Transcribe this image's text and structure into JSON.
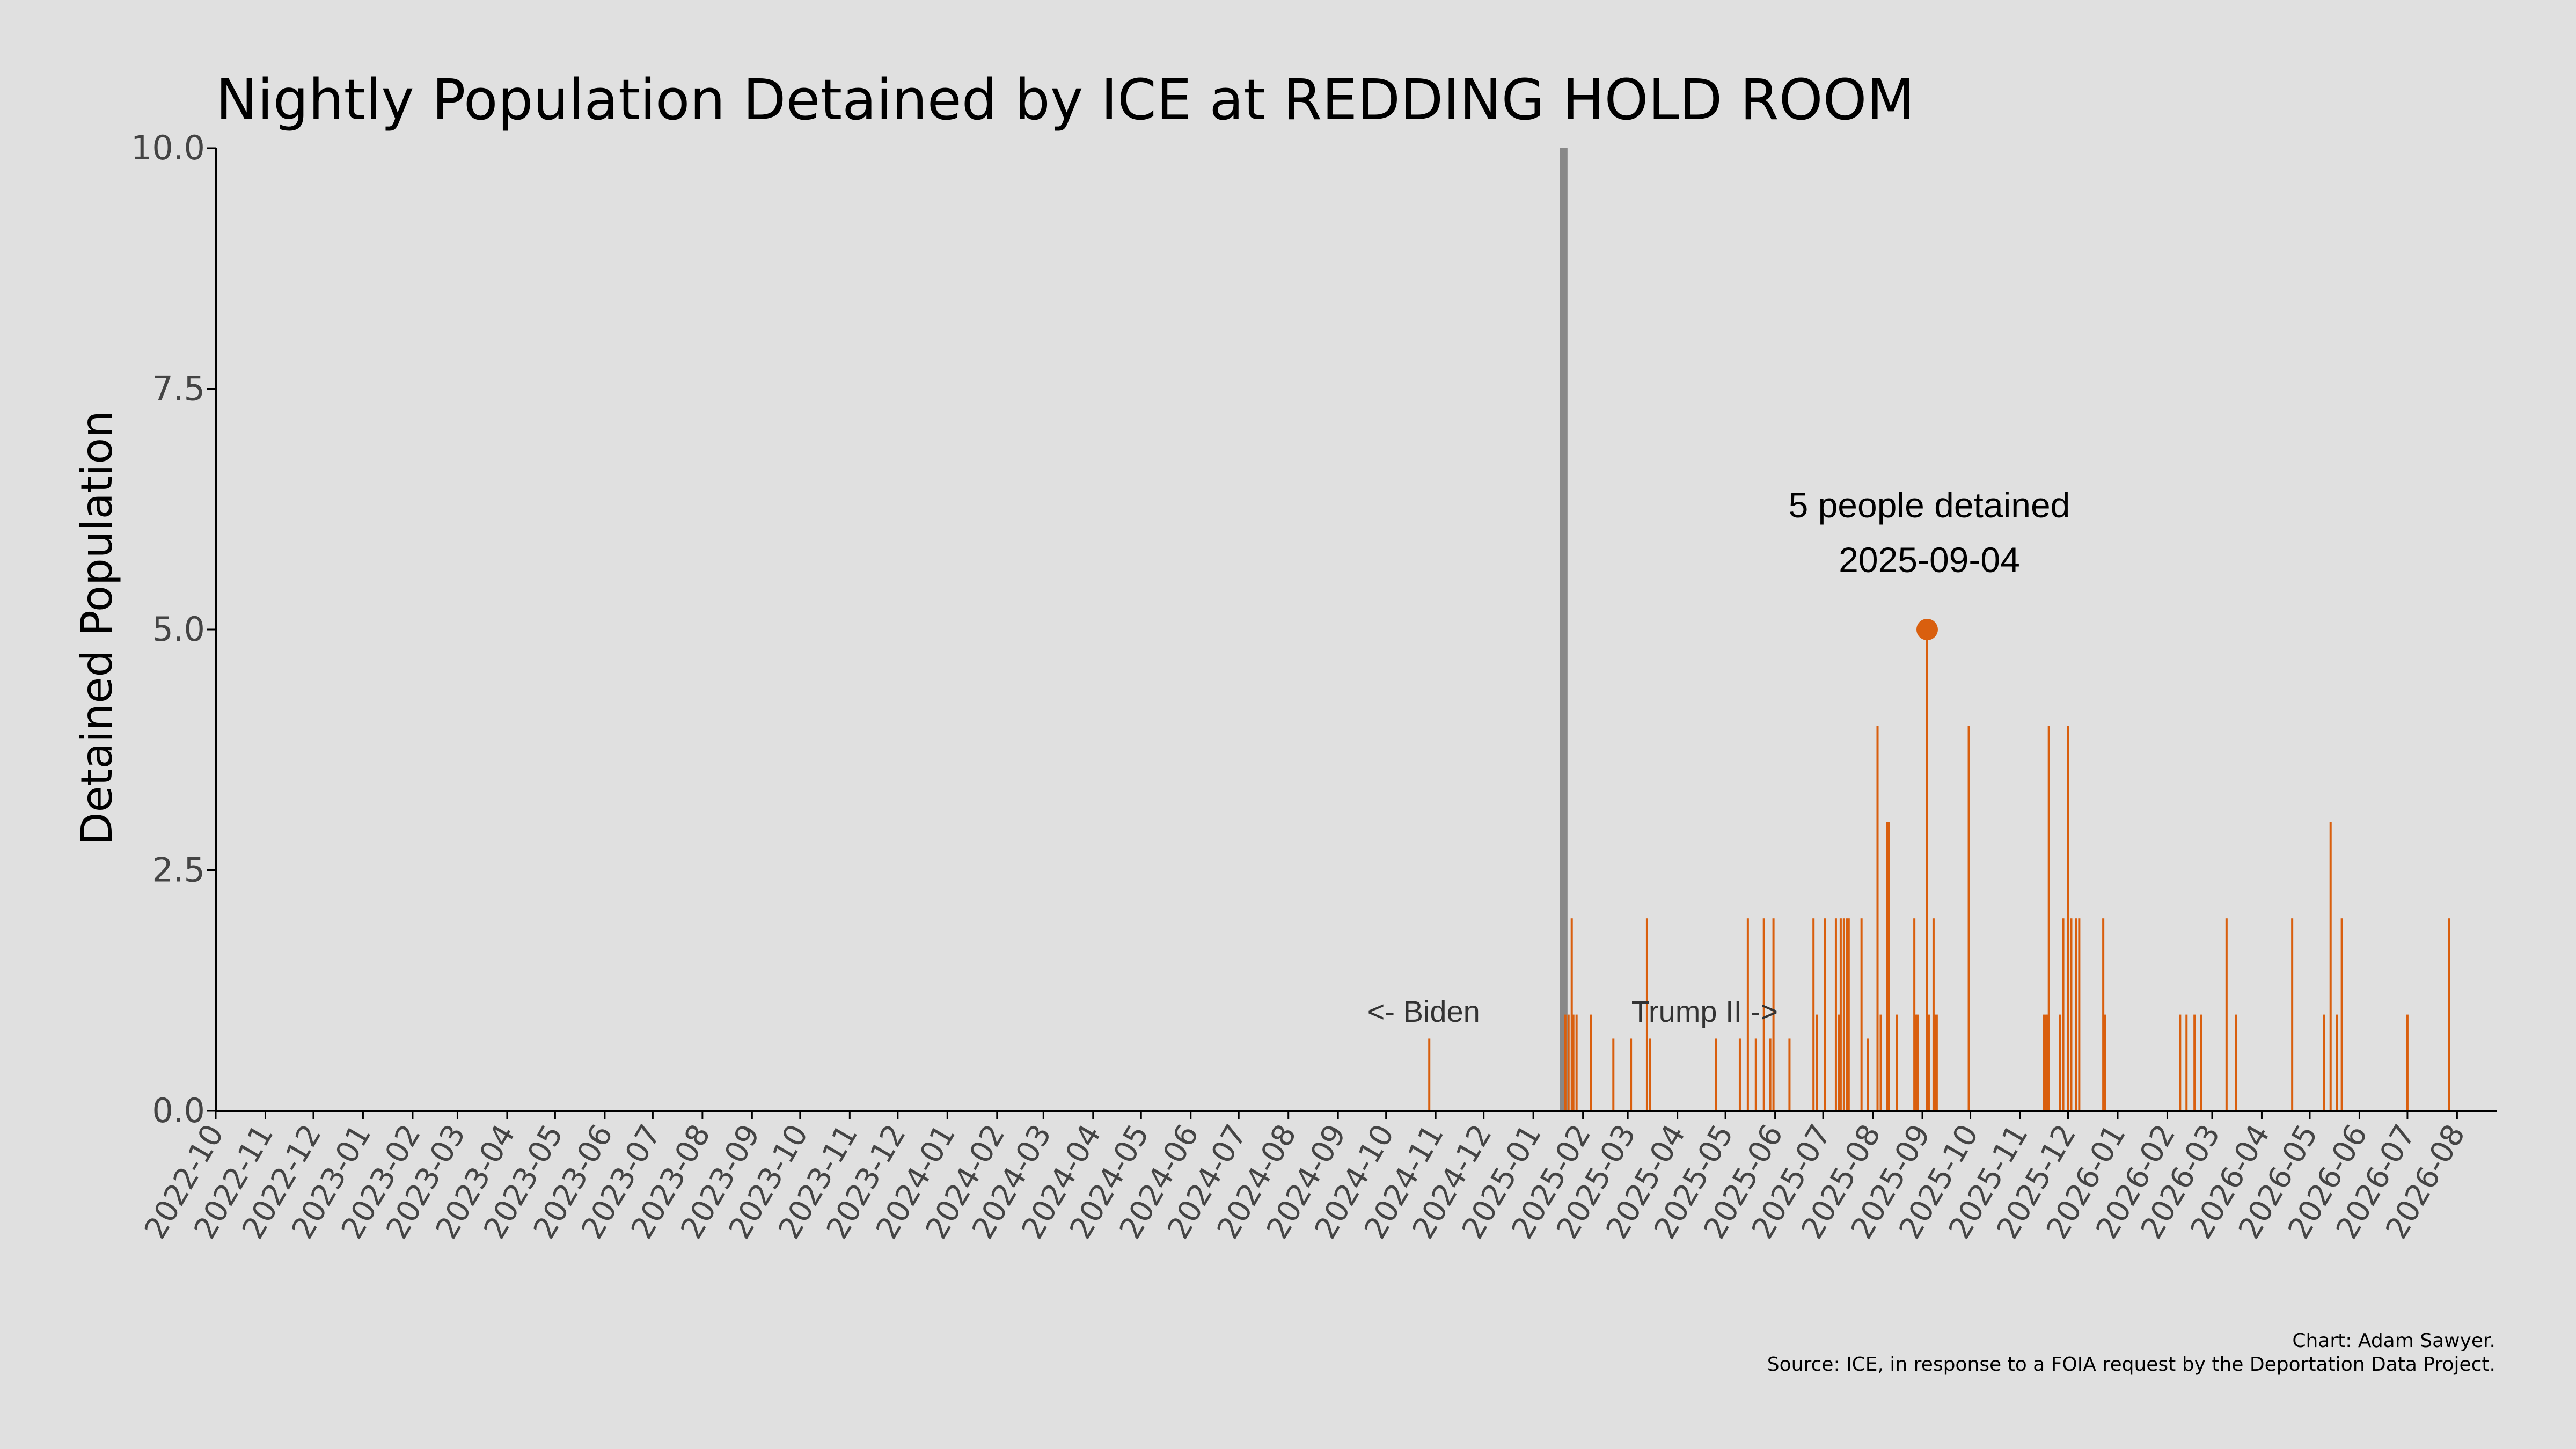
{
  "chart_data": {
    "type": "bar",
    "title": "Nightly Population Detained by ICE at REDDING HOLD ROOM",
    "xlabel": "",
    "ylabel": "Detained Population",
    "xlim": [
      "2022-10-01",
      "2026-08-25"
    ],
    "ylim": [
      0,
      10
    ],
    "yticks": [
      "0.0",
      "2.5",
      "5.0",
      "7.5",
      "10.0"
    ],
    "xticks": [
      "2022-10",
      "2022-11",
      "2022-12",
      "2023-01",
      "2023-02",
      "2023-03",
      "2023-04",
      "2023-05",
      "2023-06",
      "2023-07",
      "2023-08",
      "2023-09",
      "2023-10",
      "2023-11",
      "2023-12",
      "2024-01",
      "2024-02",
      "2024-03",
      "2024-04",
      "2024-05",
      "2024-06",
      "2024-07",
      "2024-08",
      "2024-09",
      "2024-10",
      "2024-11",
      "2024-12",
      "2025-01",
      "2025-02",
      "2025-03",
      "2025-04",
      "2025-05",
      "2025-06",
      "2025-07",
      "2025-08",
      "2025-09",
      "2025-10",
      "2025-11",
      "2025-12",
      "2026-01",
      "2026-02",
      "2026-03",
      "2026-04",
      "2026-05",
      "2026-06",
      "2026-07",
      "2026-08"
    ],
    "grid": false,
    "bar_color": "#d95f0e",
    "points": [
      [
        "2024-10-28",
        0.75
      ],
      [
        "2025-01-21",
        1
      ],
      [
        "2025-01-23",
        1
      ],
      [
        "2025-01-25",
        2
      ],
      [
        "2025-01-26",
        1
      ],
      [
        "2025-01-28",
        1
      ],
      [
        "2025-02-06",
        1
      ],
      [
        "2025-02-20",
        0.75
      ],
      [
        "2025-03-03",
        0.75
      ],
      [
        "2025-03-13",
        2
      ],
      [
        "2025-03-15",
        0.75
      ],
      [
        "2025-04-25",
        0.75
      ],
      [
        "2025-05-10",
        0.75
      ],
      [
        "2025-05-15",
        2
      ],
      [
        "2025-05-20",
        0.75
      ],
      [
        "2025-05-25",
        2
      ],
      [
        "2025-05-29",
        0.75
      ],
      [
        "2025-05-31",
        2
      ],
      [
        "2025-06-10",
        0.75
      ],
      [
        "2025-06-25",
        2
      ],
      [
        "2025-06-27",
        1
      ],
      [
        "2025-07-02",
        2
      ],
      [
        "2025-07-09",
        2
      ],
      [
        "2025-07-11",
        1
      ],
      [
        "2025-07-12",
        2
      ],
      [
        "2025-07-14",
        2
      ],
      [
        "2025-07-16",
        2
      ],
      [
        "2025-07-17",
        2
      ],
      [
        "2025-07-25",
        2
      ],
      [
        "2025-07-29",
        0.75
      ],
      [
        "2025-08-04",
        4
      ],
      [
        "2025-08-06",
        1
      ],
      [
        "2025-08-10",
        3
      ],
      [
        "2025-08-11",
        3
      ],
      [
        "2025-08-16",
        1
      ],
      [
        "2025-08-27",
        2
      ],
      [
        "2025-08-28",
        1
      ],
      [
        "2025-08-29",
        1
      ],
      [
        "2025-09-04",
        5
      ],
      [
        "2025-09-05",
        1
      ],
      [
        "2025-09-08",
        2
      ],
      [
        "2025-09-09",
        1
      ],
      [
        "2025-09-10",
        1
      ],
      [
        "2025-09-30",
        4
      ],
      [
        "2025-11-16",
        1
      ],
      [
        "2025-11-17",
        1
      ],
      [
        "2025-11-18",
        1
      ],
      [
        "2025-11-19",
        4
      ],
      [
        "2025-11-26",
        1
      ],
      [
        "2025-11-28",
        2
      ],
      [
        "2025-12-01",
        4
      ],
      [
        "2025-12-03",
        2
      ],
      [
        "2025-12-06",
        2
      ],
      [
        "2025-12-08",
        2
      ],
      [
        "2025-12-23",
        2
      ],
      [
        "2025-12-24",
        1
      ],
      [
        "2026-02-09",
        1
      ],
      [
        "2026-02-13",
        1
      ],
      [
        "2026-02-18",
        1
      ],
      [
        "2026-02-22",
        1
      ],
      [
        "2026-03-10",
        2
      ],
      [
        "2026-03-16",
        1
      ],
      [
        "2026-04-20",
        2
      ],
      [
        "2026-05-10",
        1
      ],
      [
        "2026-05-14",
        3
      ],
      [
        "2026-05-18",
        1
      ],
      [
        "2026-05-21",
        2
      ],
      [
        "2026-07-01",
        1
      ],
      [
        "2026-07-27",
        2
      ]
    ],
    "highlight": {
      "date": "2025-09-04",
      "value": 5,
      "color": "#d95f0e",
      "line1": "5 people detained",
      "line2": "2025-09-04"
    },
    "marker": {
      "date": "2025-01-20",
      "color": "#888888",
      "left_label": "<- Biden",
      "right_label": "Trump II ->"
    },
    "credit": {
      "line1": "Chart: Adam Sawyer.",
      "line2": "Source: ICE, in response to a FOIA request by the Deportation Data Project."
    }
  }
}
